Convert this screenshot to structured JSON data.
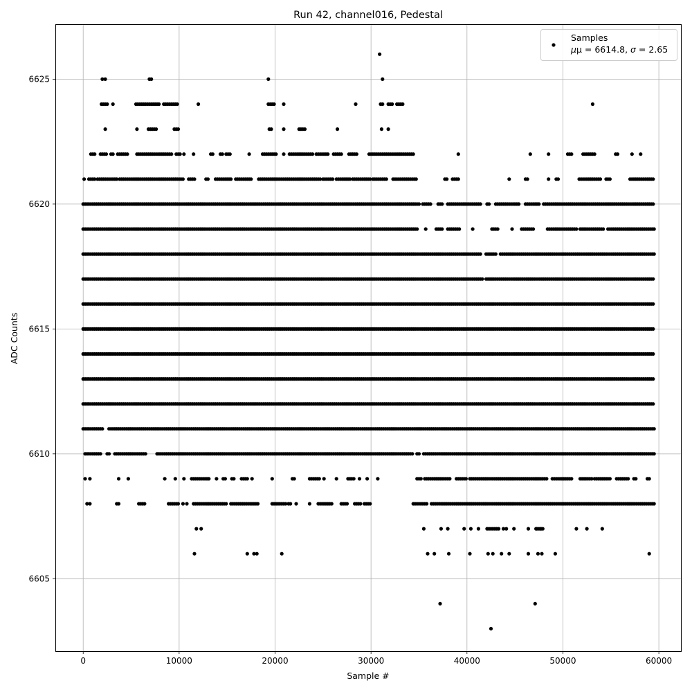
{
  "chart_data": {
    "type": "scatter",
    "title": "Run 42, channel016, Pedestal",
    "xlabel": "Sample #",
    "ylabel": "ADC Counts",
    "xlim": [
      -2900,
      62300
    ],
    "ylim": [
      6602.1,
      6627.2
    ],
    "xticks": [
      0,
      10000,
      20000,
      30000,
      40000,
      50000,
      60000
    ],
    "yticks": [
      6605,
      6610,
      6615,
      6620,
      6625
    ],
    "grid": true,
    "legend": {
      "placement": "top-right",
      "series_name": "Samples",
      "stats_prefix": "μ = 6614.8, ",
      "stats_sigma": "σ",
      "stats_suffix": " = 2.65"
    },
    "series": [
      {
        "name": "Samples",
        "color": "#000000",
        "points": [
          [
            30900,
            6626
          ],
          [
            42500,
            6603
          ],
          [
            37200,
            6604
          ],
          [
            47100,
            6604
          ],
          [
            2000,
            6625
          ],
          [
            2300,
            6625
          ],
          [
            6900,
            6625
          ],
          [
            7100,
            6625
          ],
          [
            19300,
            6625
          ],
          [
            31200,
            6625
          ],
          [
            53100,
            6624
          ],
          [
            11600,
            6606
          ],
          [
            17100,
            6606
          ],
          [
            17800,
            6606
          ],
          [
            18100,
            6606
          ],
          [
            20700,
            6606
          ],
          [
            35900,
            6606
          ],
          [
            36600,
            6606
          ],
          [
            38100,
            6606
          ],
          [
            40300,
            6606
          ],
          [
            42200,
            6606
          ],
          [
            42700,
            6606
          ],
          [
            43600,
            6606
          ],
          [
            44400,
            6606
          ],
          [
            46400,
            6606
          ],
          [
            47400,
            6606
          ],
          [
            47800,
            6606
          ],
          [
            49200,
            6606
          ],
          [
            59000,
            6606
          ],
          [
            11800,
            6607
          ],
          [
            12300,
            6607
          ],
          [
            35500,
            6607
          ],
          [
            37300,
            6607
          ],
          [
            38000,
            6607
          ],
          [
            39700,
            6607
          ],
          [
            40400,
            6607
          ],
          [
            41200,
            6607
          ],
          [
            43800,
            6607
          ],
          [
            44900,
            6607
          ],
          [
            46400,
            6607
          ],
          [
            47200,
            6607
          ],
          [
            47700,
            6607
          ],
          [
            51400,
            6607
          ],
          [
            52500,
            6607
          ],
          [
            54100,
            6607
          ]
        ],
        "segments": [
          {
            "y": 6625,
            "ranges": []
          },
          {
            "y": 6624,
            "ranges": [
              [
                1900,
                2500
              ],
              [
                3100,
                3200
              ],
              [
                5500,
                7900
              ],
              [
                8400,
                9900
              ],
              [
                12000,
                12100
              ],
              [
                19300,
                20000
              ],
              [
                20900,
                21000
              ],
              [
                28400,
                28500
              ],
              [
                31000,
                31200
              ],
              [
                31800,
                32300
              ],
              [
                32700,
                33400
              ]
            ]
          },
          {
            "y": 6623,
            "ranges": [
              [
                2300,
                2400
              ],
              [
                5600,
                5700
              ],
              [
                6800,
                7600
              ],
              [
                9500,
                9900
              ],
              [
                19400,
                19700
              ],
              [
                20900,
                21000
              ],
              [
                22500,
                23200
              ],
              [
                26500,
                26600
              ],
              [
                31100,
                31200
              ],
              [
                31800,
                31900
              ]
            ]
          },
          {
            "y": 6622,
            "ranges": [
              [
                800,
                1300
              ],
              [
                1800,
                2400
              ],
              [
                2900,
                3200
              ],
              [
                3600,
                4600
              ],
              [
                5600,
                9300
              ],
              [
                9700,
                10200
              ],
              [
                10500,
                10600
              ],
              [
                11500,
                11600
              ],
              [
                13300,
                13500
              ],
              [
                14300,
                14500
              ],
              [
                14900,
                15300
              ],
              [
                17300,
                17400
              ],
              [
                18700,
                19900
              ],
              [
                20100,
                20200
              ],
              [
                20900,
                21000
              ],
              [
                21500,
                24000
              ],
              [
                24300,
                25500
              ],
              [
                26100,
                26900
              ],
              [
                27700,
                28600
              ],
              [
                29800,
                34500
              ],
              [
                39100,
                39200
              ],
              [
                46600,
                46700
              ],
              [
                48500,
                48600
              ],
              [
                50500,
                51000
              ],
              [
                52100,
                53400
              ],
              [
                55500,
                55800
              ],
              [
                57200,
                57300
              ],
              [
                58100,
                58200
              ]
            ]
          },
          {
            "y": 6621,
            "ranges": [
              [
                100,
                200
              ],
              [
                600,
                1200
              ],
              [
                1500,
                3500
              ],
              [
                3800,
                10400
              ],
              [
                11000,
                11600
              ],
              [
                12800,
                13100
              ],
              [
                13800,
                15500
              ],
              [
                15900,
                17500
              ],
              [
                18300,
                24700
              ],
              [
                25000,
                26000
              ],
              [
                26400,
                27800
              ],
              [
                28100,
                29900
              ],
              [
                30200,
                31700
              ],
              [
                32300,
                34700
              ],
              [
                37700,
                37900
              ],
              [
                38500,
                39100
              ],
              [
                44400,
                44500
              ],
              [
                46100,
                46300
              ],
              [
                48500,
                48600
              ],
              [
                49300,
                49500
              ],
              [
                51700,
                54000
              ],
              [
                54500,
                55000
              ],
              [
                57000,
                59500
              ]
            ]
          },
          {
            "y": 6620,
            "ranges": [
              [
                0,
                35100
              ],
              [
                35400,
                36200
              ],
              [
                37000,
                37500
              ],
              [
                38000,
                41400
              ],
              [
                42100,
                42300
              ],
              [
                43000,
                45500
              ],
              [
                46100,
                47500
              ],
              [
                48000,
                59500
              ]
            ]
          },
          {
            "y": 6619,
            "ranges": [
              [
                0,
                34800
              ],
              [
                35700,
                35800
              ],
              [
                36800,
                37500
              ],
              [
                38000,
                39200
              ],
              [
                40600,
                40700
              ],
              [
                42600,
                43200
              ],
              [
                44700,
                44800
              ],
              [
                45700,
                46900
              ],
              [
                48400,
                51500
              ],
              [
                51800,
                54300
              ],
              [
                54700,
                59500
              ]
            ]
          },
          {
            "y": 6618,
            "ranges": [
              [
                0,
                41500
              ],
              [
                42000,
                43100
              ],
              [
                43500,
                59500
              ]
            ]
          },
          {
            "y": 6617,
            "ranges": [
              [
                0,
                41600
              ],
              [
                42000,
                59500
              ]
            ]
          },
          {
            "y": 6616,
            "ranges": [
              [
                0,
                59500
              ]
            ]
          },
          {
            "y": 6615,
            "ranges": [
              [
                0,
                59500
              ]
            ]
          },
          {
            "y": 6614,
            "ranges": [
              [
                0,
                59500
              ]
            ]
          },
          {
            "y": 6613,
            "ranges": [
              [
                0,
                59500
              ]
            ]
          },
          {
            "y": 6612,
            "ranges": [
              [
                0,
                59500
              ]
            ]
          },
          {
            "y": 6611,
            "ranges": [
              [
                0,
                2000
              ],
              [
                2700,
                59500
              ]
            ]
          },
          {
            "y": 6610,
            "ranges": [
              [
                200,
                1900
              ],
              [
                2500,
                2700
              ],
              [
                3300,
                6600
              ],
              [
                7700,
                34400
              ],
              [
                34800,
                35100
              ],
              [
                35500,
                59500
              ]
            ]
          },
          {
            "y": 6609,
            "ranges": [
              [
                200,
                300
              ],
              [
                700,
                800
              ],
              [
                3700,
                3800
              ],
              [
                4700,
                4800
              ],
              [
                8500,
                8600
              ],
              [
                9600,
                9700
              ],
              [
                10500,
                10600
              ],
              [
                11300,
                13100
              ],
              [
                13900,
                14000
              ],
              [
                14600,
                14800
              ],
              [
                15500,
                15700
              ],
              [
                16500,
                17100
              ],
              [
                17600,
                17700
              ],
              [
                19700,
                19800
              ],
              [
                21800,
                22100
              ],
              [
                23600,
                24700
              ],
              [
                25100,
                25200
              ],
              [
                26400,
                26500
              ],
              [
                27600,
                28200
              ],
              [
                28800,
                28900
              ],
              [
                29600,
                29700
              ],
              [
                30700,
                30800
              ],
              [
                34800,
                35200
              ],
              [
                35600,
                38200
              ],
              [
                38900,
                40000
              ],
              [
                40300,
                45500
              ],
              [
                45700,
                48400
              ],
              [
                48900,
                51000
              ],
              [
                51800,
                53000
              ],
              [
                53300,
                55000
              ],
              [
                55600,
                56900
              ],
              [
                57400,
                57600
              ],
              [
                58800,
                59100
              ]
            ]
          },
          {
            "y": 6608,
            "ranges": [
              [
                400,
                500
              ],
              [
                700,
                800
              ],
              [
                3500,
                3800
              ],
              [
                5800,
                6400
              ],
              [
                8900,
                10000
              ],
              [
                10400,
                10500
              ],
              [
                10800,
                10900
              ],
              [
                11500,
                15000
              ],
              [
                15400,
                18200
              ],
              [
                19700,
                21100
              ],
              [
                21400,
                21600
              ],
              [
                22200,
                22300
              ],
              [
                23600,
                23700
              ],
              [
                24500,
                26000
              ],
              [
                26900,
                27600
              ],
              [
                28300,
                28900
              ],
              [
                29300,
                30000
              ],
              [
                34400,
                35800
              ],
              [
                36300,
                59500
              ]
            ]
          },
          {
            "y": 6607,
            "ranges": [
              [
                42100,
                43300
              ],
              [
                44100,
                44200
              ],
              [
                47300,
                47900
              ]
            ]
          }
        ]
      }
    ]
  }
}
